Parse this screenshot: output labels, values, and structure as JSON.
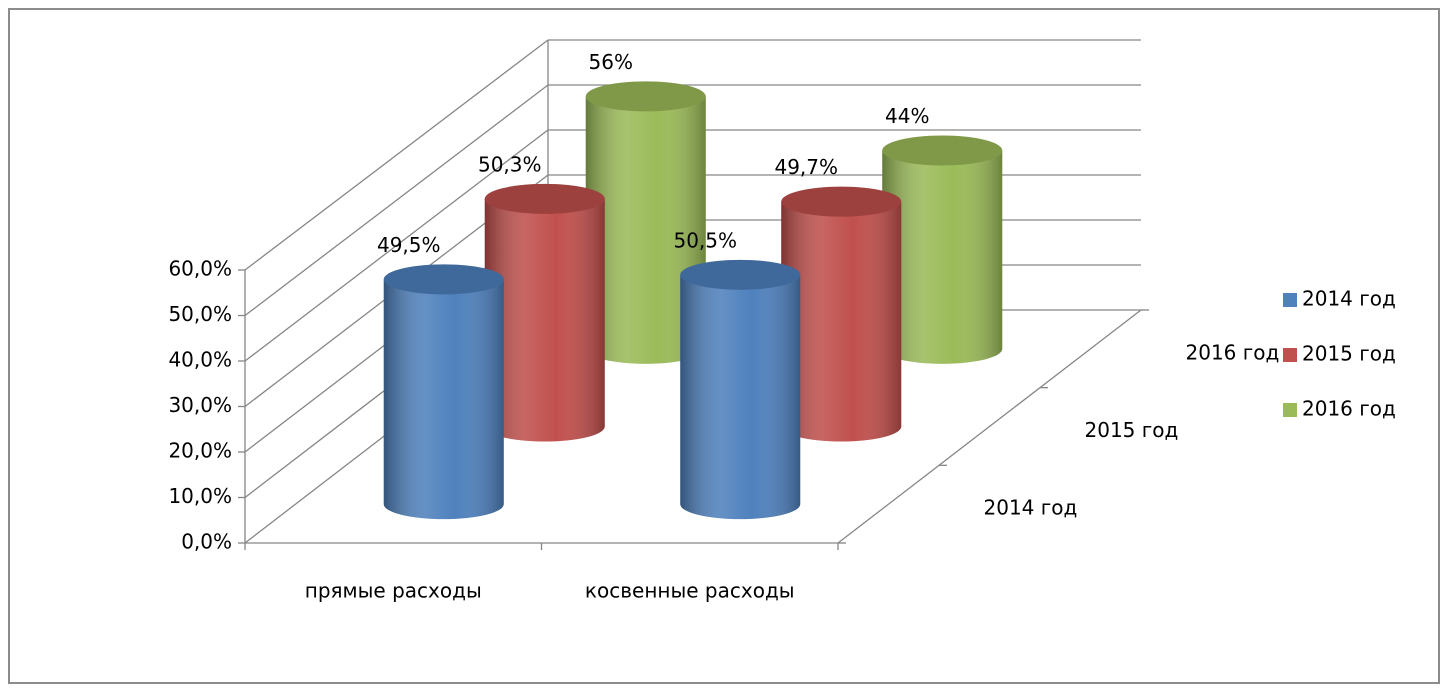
{
  "chart_data": {
    "type": "bar3d",
    "categories": [
      "прямые расходы",
      "косвенные расходы"
    ],
    "series": [
      {
        "name": "2014 год",
        "color": "#4f81bd",
        "values": [
          49.5,
          50.5
        ],
        "value_labels": [
          "49,5%",
          "50,5%"
        ]
      },
      {
        "name": "2015 год",
        "color": "#c0504d",
        "values": [
          50.3,
          49.7
        ],
        "value_labels": [
          "50,3%",
          "49,7%"
        ]
      },
      {
        "name": "2016 год",
        "color": "#9bbb59",
        "values": [
          56,
          44
        ],
        "value_labels": [
          "56%",
          "44%"
        ]
      }
    ],
    "ylim": [
      0,
      60
    ],
    "yticks": [
      {
        "value": 0,
        "label": "0,0%"
      },
      {
        "value": 10,
        "label": "10,0%"
      },
      {
        "value": 20,
        "label": "20,0%"
      },
      {
        "value": 30,
        "label": "30,0%"
      },
      {
        "value": 40,
        "label": "40,0%"
      },
      {
        "value": 50,
        "label": "50,0%"
      },
      {
        "value": 60,
        "label": "60,0%"
      }
    ],
    "grid": true,
    "legend": "right"
  }
}
